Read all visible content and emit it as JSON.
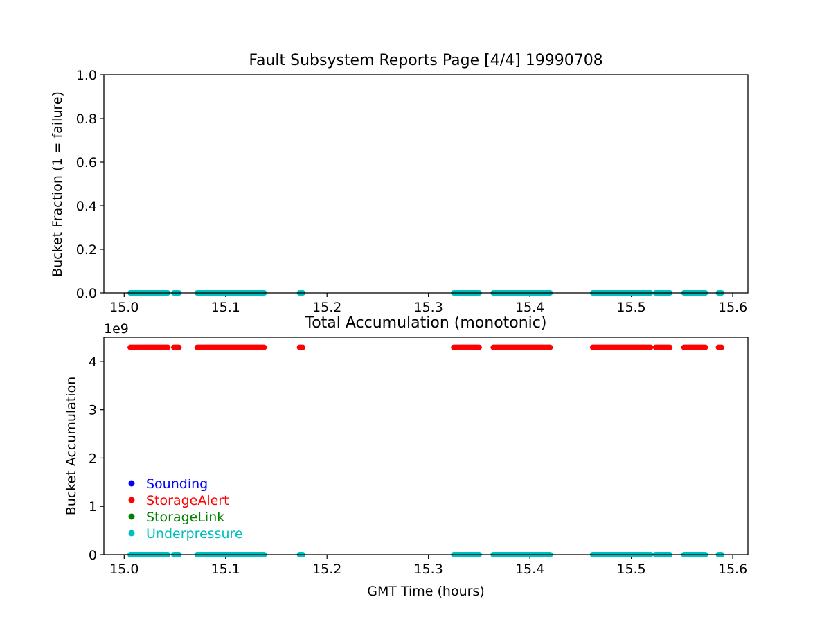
{
  "chart_data": [
    {
      "type": "scatter",
      "title": "Fault Subsystem Reports Page [4/4] 19990708",
      "xlabel": "",
      "ylabel": "Bucket Fraction (1 = failure)",
      "xlim": [
        14.98,
        15.615
      ],
      "ylim": [
        0,
        1.0
      ],
      "xticks": [
        "15.0",
        "15.1",
        "15.2",
        "15.3",
        "15.4",
        "15.5",
        "15.6"
      ],
      "xtick_values": [
        15.0,
        15.1,
        15.2,
        15.3,
        15.4,
        15.5,
        15.6
      ],
      "yticks": [
        "0.0",
        "0.2",
        "0.4",
        "0.6",
        "0.8",
        "1.0"
      ],
      "ytick_values": [
        0.0,
        0.2,
        0.4,
        0.6,
        0.8,
        1.0
      ],
      "grid": false,
      "series": [
        {
          "name": "Underpressure",
          "color": "#00bfbf",
          "segments": [
            {
              "x_start": 15.006,
              "x_end": 15.043,
              "y": 0
            },
            {
              "x_start": 15.049,
              "x_end": 15.054,
              "y": 0
            },
            {
              "x_start": 15.072,
              "x_end": 15.138,
              "y": 0
            },
            {
              "x_start": 15.173,
              "x_end": 15.176,
              "y": 0
            },
            {
              "x_start": 15.325,
              "x_end": 15.35,
              "y": 0
            },
            {
              "x_start": 15.364,
              "x_end": 15.42,
              "y": 0
            },
            {
              "x_start": 15.462,
              "x_end": 15.519,
              "y": 0
            },
            {
              "x_start": 15.524,
              "x_end": 15.538,
              "y": 0
            },
            {
              "x_start": 15.552,
              "x_end": 15.573,
              "y": 0
            },
            {
              "x_start": 15.586,
              "x_end": 15.589,
              "y": 0
            }
          ]
        }
      ]
    },
    {
      "type": "scatter",
      "title": "Total Accumulation (monotonic)",
      "xlabel": "GMT Time (hours)",
      "ylabel": "Bucket Accumulation",
      "offset_text": "1e9",
      "xlim": [
        14.98,
        15.615
      ],
      "ylim": [
        0,
        4.5
      ],
      "xticks": [
        "15.0",
        "15.1",
        "15.2",
        "15.3",
        "15.4",
        "15.5",
        "15.6"
      ],
      "xtick_values": [
        15.0,
        15.1,
        15.2,
        15.3,
        15.4,
        15.5,
        15.6
      ],
      "yticks": [
        "0",
        "1",
        "2",
        "3",
        "4"
      ],
      "ytick_values": [
        0,
        1,
        2,
        3,
        4
      ],
      "grid": false,
      "legend_position": "lower-left",
      "legend": [
        {
          "label": "Sounding",
          "color": "#0000ff"
        },
        {
          "label": "StorageAlert",
          "color": "#ff0000"
        },
        {
          "label": "StorageLink",
          "color": "#008000"
        },
        {
          "label": "Underpressure",
          "color": "#00bfbf"
        }
      ],
      "series": [
        {
          "name": "StorageAlert",
          "color": "#ff0000",
          "segments": [
            {
              "x_start": 15.006,
              "x_end": 15.043,
              "y": 4.29
            },
            {
              "x_start": 15.049,
              "x_end": 15.054,
              "y": 4.29
            },
            {
              "x_start": 15.072,
              "x_end": 15.138,
              "y": 4.29
            },
            {
              "x_start": 15.173,
              "x_end": 15.176,
              "y": 4.29
            },
            {
              "x_start": 15.325,
              "x_end": 15.35,
              "y": 4.29
            },
            {
              "x_start": 15.364,
              "x_end": 15.42,
              "y": 4.29
            },
            {
              "x_start": 15.462,
              "x_end": 15.519,
              "y": 4.29
            },
            {
              "x_start": 15.524,
              "x_end": 15.538,
              "y": 4.29
            },
            {
              "x_start": 15.552,
              "x_end": 15.573,
              "y": 4.29
            },
            {
              "x_start": 15.586,
              "x_end": 15.589,
              "y": 4.29
            }
          ]
        },
        {
          "name": "Underpressure",
          "color": "#00bfbf",
          "segments": [
            {
              "x_start": 15.006,
              "x_end": 15.043,
              "y": 0
            },
            {
              "x_start": 15.049,
              "x_end": 15.054,
              "y": 0
            },
            {
              "x_start": 15.072,
              "x_end": 15.138,
              "y": 0
            },
            {
              "x_start": 15.173,
              "x_end": 15.176,
              "y": 0
            },
            {
              "x_start": 15.325,
              "x_end": 15.35,
              "y": 0
            },
            {
              "x_start": 15.364,
              "x_end": 15.42,
              "y": 0
            },
            {
              "x_start": 15.462,
              "x_end": 15.519,
              "y": 0
            },
            {
              "x_start": 15.524,
              "x_end": 15.538,
              "y": 0
            },
            {
              "x_start": 15.552,
              "x_end": 15.573,
              "y": 0
            },
            {
              "x_start": 15.586,
              "x_end": 15.589,
              "y": 0
            }
          ]
        }
      ]
    }
  ]
}
